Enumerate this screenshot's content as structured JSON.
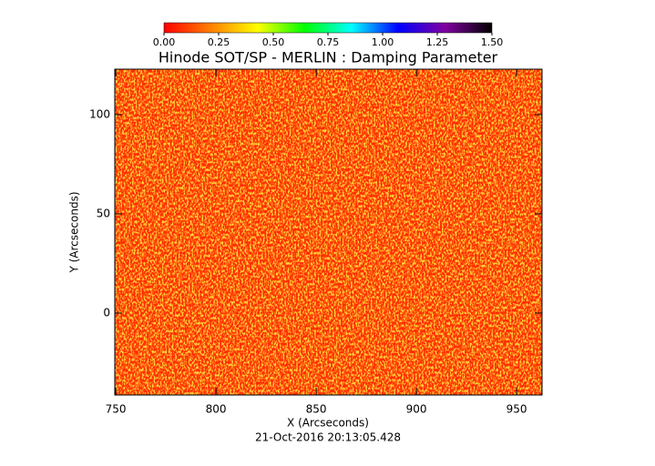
{
  "chart_data": {
    "type": "heatmap",
    "title": "Hinode SOT/SP - MERLIN : Damping Parameter",
    "xlabel": "X (Arcseconds)",
    "ylabel": "Y (Arcseconds)",
    "footer": "21-Oct-2016 20:13:05.428",
    "xlim": [
      749.5,
      962.7
    ],
    "xticks": [
      750,
      800,
      850,
      900,
      950
    ],
    "ylim": [
      -41.3,
      122.9
    ],
    "yticks": [
      0,
      50,
      100
    ],
    "colorbar": {
      "lim": [
        0,
        1.5
      ],
      "ticks": [
        {
          "value": 0,
          "label": "0.00"
        },
        {
          "value": 0.25,
          "label": "0.25"
        },
        {
          "value": 0.5,
          "label": "0.50"
        },
        {
          "value": 0.75,
          "label": "0.75"
        },
        {
          "value": 1,
          "label": "1.00"
        },
        {
          "value": 1.25,
          "label": "1.25"
        },
        {
          "value": 1.5,
          "label": "1.50"
        }
      ],
      "colors": [
        "#ff0000",
        "#ff8000",
        "#ffff00",
        "#00ff00",
        "#00ffff",
        "#0000ff",
        "#8000a0",
        "#000000"
      ]
    }
  }
}
